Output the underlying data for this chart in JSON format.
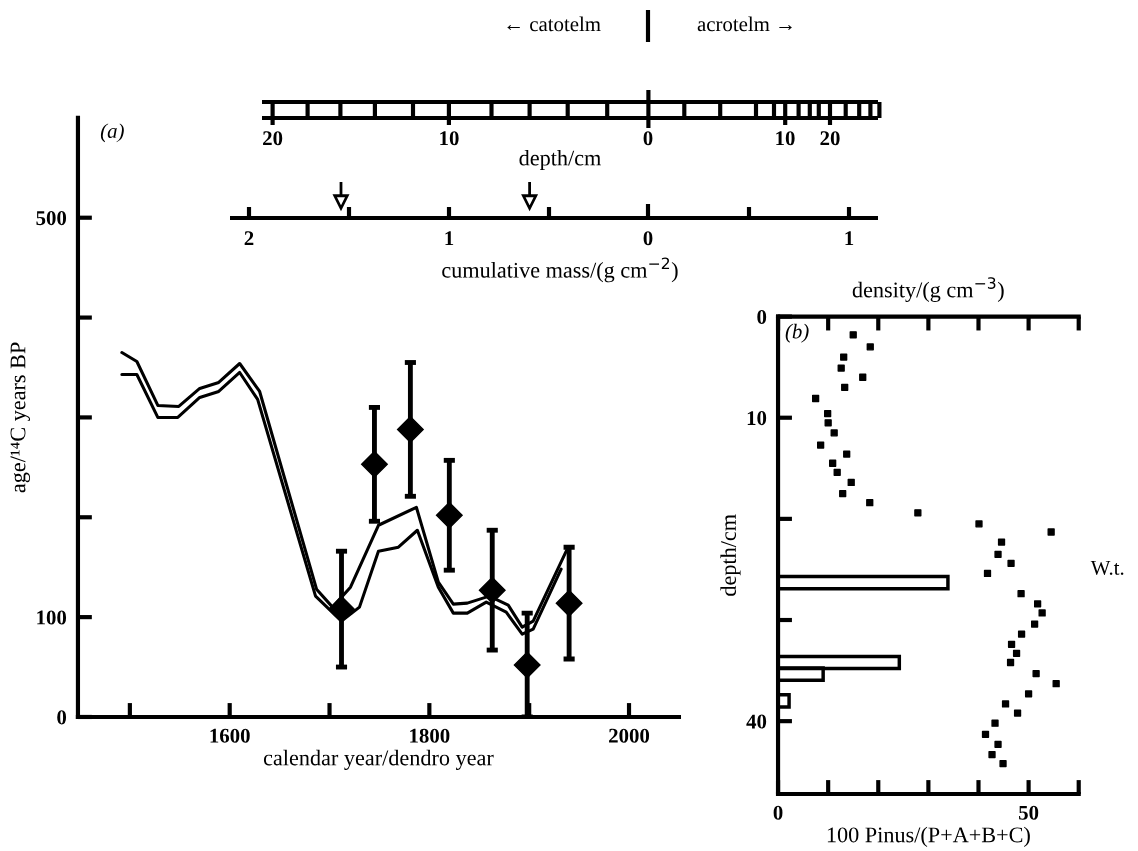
{
  "chart_data": [
    {
      "type": "other",
      "xlabel": "cumulative mass/(g cm$^{−2}$)",
      "x2label": "depth/cm",
      "annotations": [
        "← catotelm",
        "acrotelm →",
        "20",
        "10",
        "0",
        "10",
        "20",
        "2",
        "1",
        "0",
        "1"
      ]
    },
    {
      "type": "line",
      "xlabel": "calendar year/dendro year",
      "ylabel": "age/¹⁴C years BP",
      "xlim": [
        1448,
        2050
      ],
      "ylim": [
        0,
        600
      ],
      "xticks": [
        {
          "value": 1500,
          "label": null
        },
        1600,
        {
          "value": 1700,
          "label": null
        },
        1800,
        {
          "value": 1900,
          "label": null
        },
        2000
      ],
      "yticks": [
        0,
        100,
        {
          "value": 200,
          "label": null
        },
        {
          "value": 300,
          "label": null
        },
        {
          "value": 400,
          "label": null
        },
        500
      ],
      "annotations": [
        "(a)"
      ],
      "series": [
        {
          "color": "#000000",
          "marker": "none",
          "x": [
            1492,
            1507,
            1528,
            1549,
            1570,
            1589,
            1610,
            1630,
            1687,
            1703,
            1721,
            1749,
            1787,
            1809,
            1824,
            1838,
            1860,
            1879,
            1893,
            1904,
            1939
          ],
          "values": [
            365,
            356,
            312,
            311,
            329,
            335,
            354,
            326,
            128,
            110,
            130,
            192,
            210,
            135,
            113,
            114,
            121,
            112,
            90,
            96,
            170
          ]
        },
        {
          "color": "#000000",
          "marker": "none",
          "x": [
            1492,
            1507,
            1528,
            1548,
            1570,
            1589,
            1610,
            1628,
            1686,
            1712,
            1730,
            1749,
            1769,
            1788,
            1809,
            1824,
            1838,
            1857,
            1877,
            1893,
            1904,
            1932
          ],
          "values": [
            343,
            343,
            300,
            300,
            320,
            326,
            345,
            318,
            121,
            96,
            110,
            166,
            170,
            187,
            130,
            104,
            104,
            115,
            105,
            83,
            88,
            148
          ]
        },
        {
          "type": "scatter",
          "color": "#000000",
          "marker": "diamond",
          "x": [
            1712,
            1745,
            1781,
            1820,
            1863,
            1898,
            1940
          ],
          "values": [
            108,
            253,
            288,
            202,
            127,
            52,
            114
          ],
          "errors": [
            58,
            57,
            67,
            55,
            60,
            52,
            56
          ]
        }
      ]
    },
    {
      "type": "scatter",
      "orientation": "horizontal",
      "xlabel": "100 Pinus/(P+A+B+C)",
      "ylabel": "depth/cm",
      "x2label": "density/(g cm$^{−3}$)",
      "xlim": [
        0,
        60
      ],
      "ylim": [
        47.2,
        0
      ],
      "xticks": [
        0,
        {
          "value": 10,
          "label": null
        },
        {
          "value": 20,
          "label": null
        },
        {
          "value": 30,
          "label": null
        },
        {
          "value": 40,
          "label": null
        },
        50,
        {
          "value": 60,
          "label": null
        }
      ],
      "yticks": [
        0,
        10,
        {
          "value": 20,
          "label": null
        },
        {
          "value": 30,
          "label": null
        },
        40
      ],
      "annotations": [
        "(b)",
        "W.t."
      ],
      "series": [
        {
          "type": "bar",
          "color": "#000000",
          "x": [
            26.3,
            34.2,
            35.35,
            38.0
          ],
          "values": [
            33.9,
            24.2,
            9.0,
            2.2
          ]
        },
        {
          "color": "#000000",
          "marker": "square",
          "x": [
            1.8,
            3.0,
            4.0,
            5.1,
            6.0,
            7.0,
            8.1,
            9.6,
            10.5,
            11.5,
            12.7,
            13.6,
            14.5,
            15.4,
            16.4,
            17.5,
            18.4,
            19.4,
            20.5,
            21.3,
            22.3,
            23.5,
            24.4,
            25.4,
            27.4,
            28.4,
            29.3,
            30.4,
            31.4,
            32.4,
            33.3,
            34.2,
            35.3,
            36.3,
            37.3,
            38.3,
            39.2,
            40.2,
            41.3,
            42.3,
            43.3,
            44.2
          ],
          "values": [
            15.0,
            18.4,
            13.1,
            12.6,
            16.9,
            13.3,
            7.5,
            9.9,
            10.0,
            11.2,
            8.5,
            13.7,
            10.9,
            11.8,
            14.6,
            12.9,
            18.3,
            27.9,
            40.1,
            54.5,
            44.6,
            43.9,
            46.5,
            41.8,
            48.5,
            51.8,
            52.7,
            51.2,
            48.6,
            46.6,
            47.6,
            46.4,
            51.5,
            55.5,
            50.0,
            45.4,
            47.8,
            43.3,
            41.4,
            43.9,
            42.7,
            44.9
          ]
        }
      ]
    }
  ]
}
